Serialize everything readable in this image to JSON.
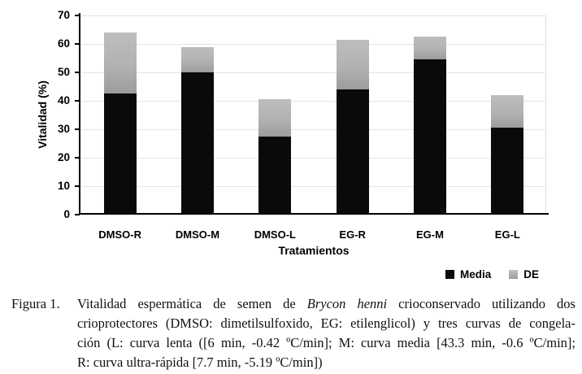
{
  "chart_data": {
    "type": "bar",
    "stacked": true,
    "title": "",
    "categories": [
      "DMSO-R",
      "DMSO-M",
      "DMSO-L",
      "EG-R",
      "EG-M",
      "EG-L"
    ],
    "series": [
      {
        "name": "Media",
        "values": [
          42.5,
          50,
          27.5,
          44,
          54.5,
          30.5
        ],
        "color": "#0a0a0a"
      },
      {
        "name": "DE",
        "values": [
          21.5,
          9,
          13,
          17.5,
          8,
          11.5
        ],
        "color": "#b2b2b2"
      }
    ],
    "xlabel": "Tratamientos",
    "ylabel": "Vitalidad (%)",
    "ylim": [
      0,
      70
    ],
    "ytick_step": 10,
    "grid": true,
    "legend_position": "bottom-right"
  },
  "colors": {
    "bar_media": "#0a0a0a",
    "bar_de": "#b2b2b2",
    "gridline": "#dde5ec",
    "axis": "#000000"
  },
  "figure": {
    "caption_label": "Figura 1.",
    "caption_lines": [
      {
        "justify": true,
        "parts": [
          {
            "text": "Vitalidad espermática de semen de "
          },
          {
            "text": "Brycon henni",
            "italic": true
          },
          {
            "text": " crioconservado utilizando dos"
          }
        ]
      },
      {
        "justify": true,
        "parts": [
          {
            "text": "crioprotectores (DMSO: dimetilsulfoxido, EG: etilenglicol) y tres curvas de congela-"
          }
        ]
      },
      {
        "justify": true,
        "parts": [
          {
            "text": "ción (L: curva lenta ([6 min, -0.42 ºC/min]; M: curva media [43.3 min, -0.6 ºC/min];"
          }
        ]
      },
      {
        "justify": false,
        "parts": [
          {
            "text": "R: curva ultra-rápida [7.7 min, -5.19 ºC/min])"
          }
        ]
      }
    ]
  }
}
